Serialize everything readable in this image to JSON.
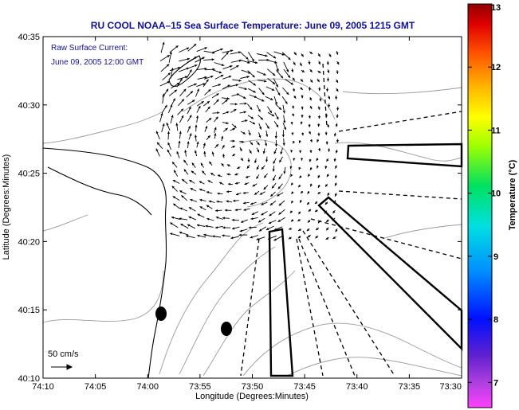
{
  "chart_data": {
    "type": "vector-field-map",
    "title": "RU COOL  NOAA–15  Sea Surface Temperature:  June 09, 2005 1215 GMT",
    "xlabel": "Longitude (Degrees:Minutes)",
    "ylabel": "Latitude (Degrees:Minutes)",
    "x_tick_labels": [
      "74:10",
      "74:05",
      "74:00",
      "73:55",
      "73:50",
      "73:45",
      "73:40",
      "73:35",
      "73:30"
    ],
    "y_tick_labels": [
      "40:10",
      "40:15",
      "40:20",
      "40:25",
      "40:30",
      "40:35"
    ],
    "x_range_min": [
      -74.1667,
      -73.5
    ],
    "y_range_min": [
      40.1667,
      40.5833
    ],
    "annotation": {
      "line1": "Raw Surface Current:",
      "line2": "June 09, 2005 12:00 GMT"
    },
    "scale_vector": {
      "label": "50 cm/s",
      "speed_cm_s": 50
    },
    "colorbar": {
      "label": "Temperature (°C)",
      "ticks": [
        "7",
        "8",
        "9",
        "10",
        "11",
        "12",
        "13"
      ],
      "range": [
        6.6,
        13
      ]
    },
    "field_center": {
      "lon": -73.86,
      "lat": 40.43
    }
  },
  "colors": {
    "title": "#1010a0",
    "land": "#ffffff",
    "coast": "#000000",
    "contour": "#9a9a9a",
    "arrow": "#000000"
  }
}
